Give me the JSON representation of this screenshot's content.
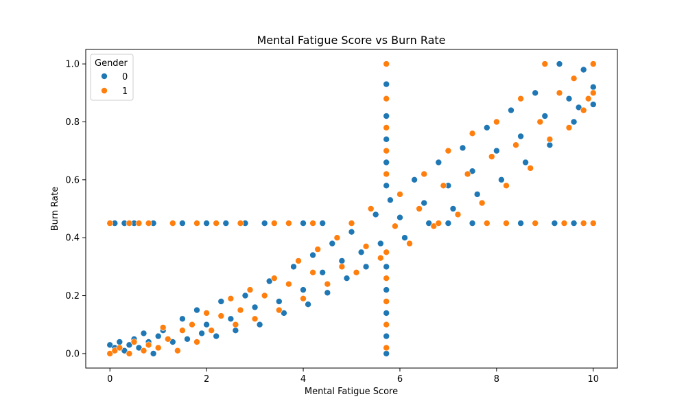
{
  "chart_data": {
    "type": "scatter",
    "title": "Mental Fatigue Score vs Burn Rate",
    "xlabel": "Mental Fatigue Score",
    "ylabel": "Burn Rate",
    "xlim": [
      -0.5,
      10.5
    ],
    "ylim": [
      -0.05,
      1.05
    ],
    "xticks": [
      "0",
      "2",
      "4",
      "6",
      "8",
      "10"
    ],
    "yticks": [
      "0.0",
      "0.2",
      "0.4",
      "0.6",
      "0.8",
      "1.0"
    ],
    "grid": false,
    "legend": {
      "title": "Gender",
      "placement": "top-left",
      "entries": [
        "0",
        "1"
      ]
    },
    "series_colors": [
      "#1f77b4",
      "#ff7f0e"
    ],
    "series": [
      {
        "name": "0",
        "points": [
          [
            0.0,
            0.03
          ],
          [
            0.1,
            0.02
          ],
          [
            0.2,
            0.04
          ],
          [
            0.3,
            0.01
          ],
          [
            0.4,
            0.03
          ],
          [
            0.5,
            0.05
          ],
          [
            0.6,
            0.02
          ],
          [
            0.7,
            0.07
          ],
          [
            0.8,
            0.04
          ],
          [
            0.9,
            0.0
          ],
          [
            1.0,
            0.06
          ],
          [
            1.1,
            0.08
          ],
          [
            1.3,
            0.04
          ],
          [
            1.5,
            0.12
          ],
          [
            1.6,
            0.05
          ],
          [
            1.8,
            0.15
          ],
          [
            1.9,
            0.07
          ],
          [
            2.0,
            0.1
          ],
          [
            2.2,
            0.06
          ],
          [
            2.3,
            0.18
          ],
          [
            2.5,
            0.12
          ],
          [
            2.6,
            0.08
          ],
          [
            2.8,
            0.2
          ],
          [
            3.0,
            0.16
          ],
          [
            3.1,
            0.1
          ],
          [
            3.3,
            0.25
          ],
          [
            3.5,
            0.18
          ],
          [
            3.6,
            0.14
          ],
          [
            3.8,
            0.3
          ],
          [
            4.0,
            0.22
          ],
          [
            4.1,
            0.17
          ],
          [
            4.2,
            0.34
          ],
          [
            4.4,
            0.28
          ],
          [
            4.5,
            0.21
          ],
          [
            4.6,
            0.38
          ],
          [
            4.8,
            0.32
          ],
          [
            4.9,
            0.26
          ],
          [
            5.0,
            0.42
          ],
          [
            5.2,
            0.35
          ],
          [
            5.3,
            0.3
          ],
          [
            5.5,
            0.48
          ],
          [
            5.6,
            0.38
          ],
          [
            5.8,
            0.53
          ],
          [
            6.0,
            0.47
          ],
          [
            6.1,
            0.4
          ],
          [
            6.3,
            0.6
          ],
          [
            6.5,
            0.52
          ],
          [
            6.6,
            0.45
          ],
          [
            6.8,
            0.66
          ],
          [
            7.0,
            0.58
          ],
          [
            7.1,
            0.5
          ],
          [
            7.3,
            0.71
          ],
          [
            7.5,
            0.63
          ],
          [
            7.6,
            0.55
          ],
          [
            7.8,
            0.78
          ],
          [
            8.0,
            0.7
          ],
          [
            8.1,
            0.6
          ],
          [
            8.3,
            0.84
          ],
          [
            8.5,
            0.75
          ],
          [
            8.6,
            0.66
          ],
          [
            8.8,
            0.9
          ],
          [
            9.0,
            0.82
          ],
          [
            9.1,
            0.72
          ],
          [
            9.3,
            1.0
          ],
          [
            9.5,
            0.88
          ],
          [
            9.6,
            0.8
          ],
          [
            9.8,
            0.98
          ],
          [
            10.0,
            0.92
          ],
          [
            10.0,
            0.86
          ],
          [
            9.7,
            0.85
          ],
          [
            0.1,
            0.45
          ],
          [
            0.3,
            0.45
          ],
          [
            0.5,
            0.45
          ],
          [
            0.9,
            0.45
          ],
          [
            1.5,
            0.45
          ],
          [
            2.0,
            0.45
          ],
          [
            2.4,
            0.45
          ],
          [
            2.8,
            0.45
          ],
          [
            3.2,
            0.45
          ],
          [
            4.0,
            0.45
          ],
          [
            4.4,
            0.45
          ],
          [
            7.0,
            0.45
          ],
          [
            7.5,
            0.45
          ],
          [
            8.5,
            0.45
          ],
          [
            9.2,
            0.45
          ],
          [
            9.6,
            0.45
          ],
          [
            5.72,
            0.0
          ],
          [
            5.72,
            0.06
          ],
          [
            5.72,
            0.14
          ],
          [
            5.72,
            0.22
          ],
          [
            5.72,
            0.3
          ],
          [
            5.72,
            0.58
          ],
          [
            5.72,
            0.66
          ],
          [
            5.72,
            0.74
          ],
          [
            5.72,
            0.82
          ],
          [
            5.72,
            0.93
          ]
        ]
      },
      {
        "name": "1",
        "points": [
          [
            0.0,
            0.0
          ],
          [
            0.1,
            0.01
          ],
          [
            0.2,
            0.02
          ],
          [
            0.4,
            0.0
          ],
          [
            0.5,
            0.04
          ],
          [
            0.7,
            0.01
          ],
          [
            0.8,
            0.03
          ],
          [
            1.0,
            0.02
          ],
          [
            1.1,
            0.09
          ],
          [
            1.2,
            0.05
          ],
          [
            1.4,
            0.01
          ],
          [
            1.5,
            0.08
          ],
          [
            1.7,
            0.1
          ],
          [
            1.8,
            0.04
          ],
          [
            2.0,
            0.14
          ],
          [
            2.1,
            0.08
          ],
          [
            2.3,
            0.13
          ],
          [
            2.5,
            0.19
          ],
          [
            2.6,
            0.1
          ],
          [
            2.7,
            0.15
          ],
          [
            2.9,
            0.22
          ],
          [
            3.0,
            0.12
          ],
          [
            3.2,
            0.2
          ],
          [
            3.4,
            0.26
          ],
          [
            3.5,
            0.15
          ],
          [
            3.7,
            0.24
          ],
          [
            3.9,
            0.32
          ],
          [
            4.0,
            0.19
          ],
          [
            4.2,
            0.28
          ],
          [
            4.3,
            0.36
          ],
          [
            4.5,
            0.24
          ],
          [
            4.7,
            0.4
          ],
          [
            4.8,
            0.3
          ],
          [
            5.0,
            0.45
          ],
          [
            5.1,
            0.28
          ],
          [
            5.3,
            0.37
          ],
          [
            5.4,
            0.5
          ],
          [
            5.6,
            0.33
          ],
          [
            5.9,
            0.44
          ],
          [
            6.0,
            0.55
          ],
          [
            6.2,
            0.38
          ],
          [
            6.4,
            0.5
          ],
          [
            6.5,
            0.62
          ],
          [
            6.7,
            0.44
          ],
          [
            6.9,
            0.58
          ],
          [
            7.0,
            0.7
          ],
          [
            7.2,
            0.48
          ],
          [
            7.4,
            0.62
          ],
          [
            7.5,
            0.76
          ],
          [
            7.7,
            0.52
          ],
          [
            7.9,
            0.68
          ],
          [
            8.0,
            0.8
          ],
          [
            8.2,
            0.58
          ],
          [
            8.4,
            0.72
          ],
          [
            8.5,
            0.88
          ],
          [
            8.7,
            0.64
          ],
          [
            8.9,
            0.8
          ],
          [
            9.0,
            1.0
          ],
          [
            9.1,
            0.74
          ],
          [
            9.3,
            0.9
          ],
          [
            9.5,
            0.78
          ],
          [
            9.6,
            0.95
          ],
          [
            9.8,
            0.84
          ],
          [
            10.0,
            1.0
          ],
          [
            10.0,
            0.9
          ],
          [
            9.9,
            0.88
          ],
          [
            0.0,
            0.45
          ],
          [
            0.4,
            0.45
          ],
          [
            0.6,
            0.45
          ],
          [
            0.8,
            0.45
          ],
          [
            1.3,
            0.45
          ],
          [
            1.8,
            0.45
          ],
          [
            2.2,
            0.45
          ],
          [
            2.7,
            0.45
          ],
          [
            3.4,
            0.45
          ],
          [
            3.7,
            0.45
          ],
          [
            4.2,
            0.45
          ],
          [
            6.8,
            0.45
          ],
          [
            7.8,
            0.45
          ],
          [
            8.2,
            0.45
          ],
          [
            8.8,
            0.45
          ],
          [
            9.4,
            0.45
          ],
          [
            9.8,
            0.45
          ],
          [
            10.0,
            0.45
          ],
          [
            5.72,
            0.02
          ],
          [
            5.72,
            0.1
          ],
          [
            5.72,
            0.18
          ],
          [
            5.72,
            0.26
          ],
          [
            5.72,
            0.35
          ],
          [
            5.72,
            0.62
          ],
          [
            5.72,
            0.7
          ],
          [
            5.72,
            0.78
          ],
          [
            5.72,
            0.88
          ],
          [
            5.72,
            1.0
          ]
        ]
      }
    ]
  }
}
